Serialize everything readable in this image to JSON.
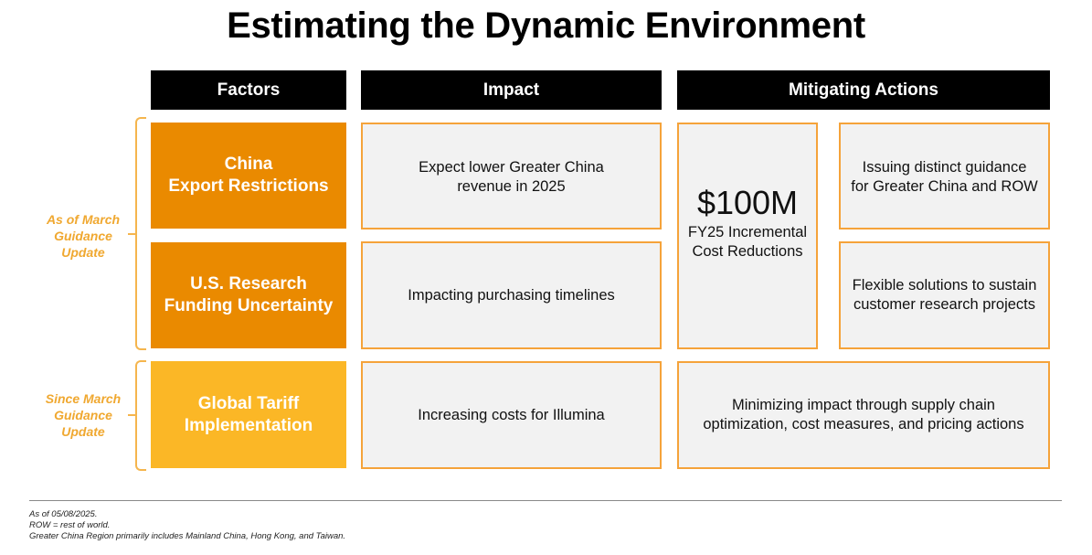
{
  "title": "Estimating the Dynamic Environment",
  "headers": {
    "factors": "Factors",
    "impact": "Impact",
    "mitigating": "Mitigating Actions"
  },
  "side_labels": [
    {
      "lines": [
        "As of March",
        "Guidance",
        "Update"
      ]
    },
    {
      "lines": [
        "Since March",
        "Guidance",
        "Update"
      ]
    }
  ],
  "factors": [
    {
      "lines": [
        "China",
        "Export Restrictions"
      ],
      "color": "#ea8a00"
    },
    {
      "lines": [
        "U.S. Research",
        "Funding Uncertainty"
      ],
      "color": "#ea8a00"
    },
    {
      "lines": [
        "Global Tariff",
        "Implementation"
      ],
      "color": "#fbb726"
    }
  ],
  "impacts": [
    {
      "lines": [
        "Expect lower Greater China",
        "revenue in 2025"
      ]
    },
    {
      "lines": [
        "Impacting purchasing timelines"
      ]
    },
    {
      "lines": [
        "Increasing costs for Illumina"
      ]
    }
  ],
  "mitigation": {
    "amount": "$100M",
    "amount_lines": [
      "FY25 Incremental",
      "Cost Reductions"
    ],
    "china": [
      "Issuing distinct guidance",
      "for Greater China and ROW"
    ],
    "research": [
      "Flexible solutions to sustain",
      "customer research projects"
    ],
    "tariff": [
      "Minimizing impact through supply chain",
      "optimization, cost measures, and pricing actions"
    ]
  },
  "footnotes": [
    "As of 05/08/2025.",
    "ROW = rest of world.",
    "Greater China Region primarily includes Mainland China, Hong Kong, and Taiwan."
  ],
  "colors": {
    "accent_orange": "#ea8a00",
    "accent_yellow": "#fbb726",
    "cell_border": "#f5a33a",
    "header_bg": "#000000"
  }
}
